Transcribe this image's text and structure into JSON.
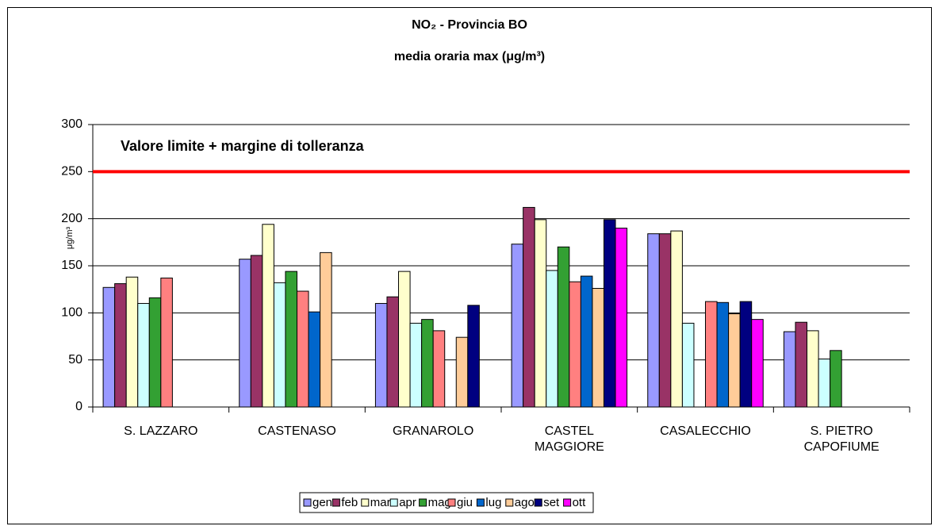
{
  "chart_data": {
    "type": "bar",
    "title": "NO₂ - Provincia BO",
    "subtitle": "media oraria max (μg/m³)",
    "y_label": "μg/m³",
    "categories": [
      "S. LAZZARO",
      "CASTENASO",
      "GRANAROLO",
      "CASTEL MAGGIORE",
      "CASALECCHIO",
      "S. PIETRO CAPOFIUME"
    ],
    "series": [
      {
        "name": "gen",
        "color": "#9999ff",
        "values": [
          127,
          157,
          110,
          173,
          184,
          80
        ]
      },
      {
        "name": "feb",
        "color": "#993366",
        "values": [
          131,
          161,
          117,
          212,
          184,
          90
        ]
      },
      {
        "name": "mar",
        "color": "#ffffcc",
        "values": [
          138,
          194,
          144,
          199,
          187,
          81
        ]
      },
      {
        "name": "apr",
        "color": "#ccffff",
        "values": [
          110,
          132,
          89,
          145,
          89,
          51
        ]
      },
      {
        "name": "mag",
        "color": "#33a033",
        "values": [
          116,
          144,
          93,
          170,
          null,
          60
        ]
      },
      {
        "name": "giu",
        "color": "#ff8080",
        "values": [
          137,
          123,
          81,
          133,
          112,
          null
        ]
      },
      {
        "name": "lug",
        "color": "#0066cc",
        "values": [
          null,
          101,
          null,
          139,
          111,
          null
        ]
      },
      {
        "name": "ago",
        "color": "#ffcc99",
        "values": [
          null,
          164,
          74,
          126,
          99,
          null
        ]
      },
      {
        "name": "set",
        "color": "#000080",
        "values": [
          null,
          null,
          108,
          199,
          112,
          null
        ]
      },
      {
        "name": "ott",
        "color": "#ff00ff",
        "values": [
          null,
          null,
          null,
          190,
          93,
          null
        ]
      }
    ],
    "annotation": {
      "text": "Valore limite + margine di tolleranza",
      "value": 250,
      "color": "#ff0000"
    },
    "ylim": [
      0,
      300
    ],
    "yticks": [
      0,
      50,
      100,
      150,
      200,
      250,
      300
    ],
    "grid": true,
    "legend": "bottom"
  }
}
